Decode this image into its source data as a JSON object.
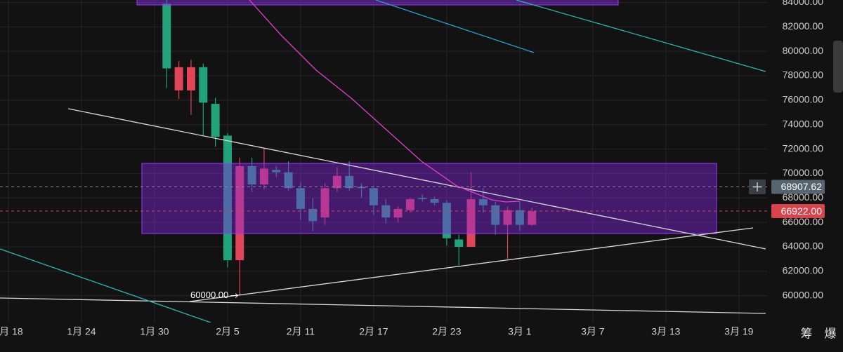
{
  "chart_data": {
    "type": "candlestick",
    "x": [
      "1月 31",
      "2月 1",
      "2月 2",
      "2月 3",
      "2月 4",
      "2月 5",
      "2月 6",
      "2月 7",
      "2月 8",
      "2月 9",
      "2月 10",
      "2月 11",
      "2月 12",
      "2月 13",
      "2月 14",
      "2月 15",
      "2月 16",
      "2月 17",
      "2月 18",
      "2月 19",
      "2月 20",
      "2月 21",
      "2月 22",
      "2月 23",
      "2月 24",
      "2月 25",
      "2月 26",
      "2月 27",
      "2月 28",
      "3月 1",
      "3月 2"
    ],
    "open": [
      83900,
      76800,
      76800,
      78700,
      75700,
      73100,
      62900,
      70600,
      69100,
      70300,
      70100,
      68800,
      67100,
      66400,
      68800,
      69800,
      68900,
      68800,
      67400,
      66400,
      67000,
      68000,
      67900,
      67600,
      64600,
      64000,
      67900,
      67400,
      65800,
      67000,
      65800
    ],
    "high": [
      84600,
      79200,
      79300,
      79000,
      76200,
      73300,
      71300,
      71300,
      72100,
      70600,
      71000,
      69300,
      68000,
      69200,
      70500,
      71000,
      69200,
      69000,
      67900,
      67300,
      68000,
      68300,
      68100,
      67800,
      65000,
      70100,
      68800,
      67700,
      67300,
      67700,
      67200
    ],
    "low": [
      77000,
      76100,
      74800,
      73100,
      72200,
      62300,
      60000,
      68500,
      68700,
      69700,
      68600,
      66200,
      65300,
      65800,
      68500,
      68600,
      68000,
      66600,
      65900,
      66000,
      66800,
      67700,
      67400,
      64100,
      62500,
      64000,
      66800,
      65000,
      63000,
      65300,
      65700
    ],
    "close": [
      78600,
      78700,
      78700,
      75800,
      73000,
      62900,
      70600,
      69100,
      70400,
      70100,
      68800,
      67100,
      66100,
      68800,
      69800,
      68800,
      68800,
      67400,
      66400,
      67100,
      67900,
      67900,
      67600,
      64700,
      64000,
      67900,
      67400,
      65800,
      67000,
      65800,
      66900
    ],
    "up_color": "#e0455a",
    "down_color": "#22a37a",
    "ylim": [
      57800,
      84200
    ],
    "yticks": [
      {
        "value": 60000,
        "label": "60000.00"
      },
      {
        "value": 62000,
        "label": "62000.00"
      },
      {
        "value": 64000,
        "label": "64000.00"
      },
      {
        "value": 66000,
        "label": "66000.00"
      },
      {
        "value": 68000,
        "label": "68000.00"
      },
      {
        "value": 70000,
        "label": "70000.00"
      },
      {
        "value": 72000,
        "label": "72000.00"
      },
      {
        "value": 74000,
        "label": "74000.00"
      },
      {
        "value": 76000,
        "label": "76000.00"
      },
      {
        "value": 78000,
        "label": "78000.00"
      },
      {
        "value": 80000,
        "label": "80000.00"
      },
      {
        "value": 82000,
        "label": "82000.00"
      },
      {
        "value": 84000,
        "label": "84000.00"
      }
    ],
    "xticks": [
      "1月 18",
      "1月 24",
      "1月 30",
      "2月 5",
      "2月 11",
      "2月 17",
      "2月 23",
      "3月 1",
      "3月 7",
      "3月 13",
      "3月 19"
    ],
    "grid": true,
    "price_labels": [
      {
        "value": 68907.62,
        "label": "68907.62",
        "color": "#56646f",
        "line_color": "#8a8a8a"
      },
      {
        "value": 66922,
        "label": "66922.00",
        "color": "#d8434c",
        "line_color": "#d8434c"
      }
    ],
    "annotation": {
      "value": 60000,
      "label": "60000.00",
      "x": "2月 6"
    },
    "toolbar": [
      "筹",
      "爆"
    ]
  }
}
